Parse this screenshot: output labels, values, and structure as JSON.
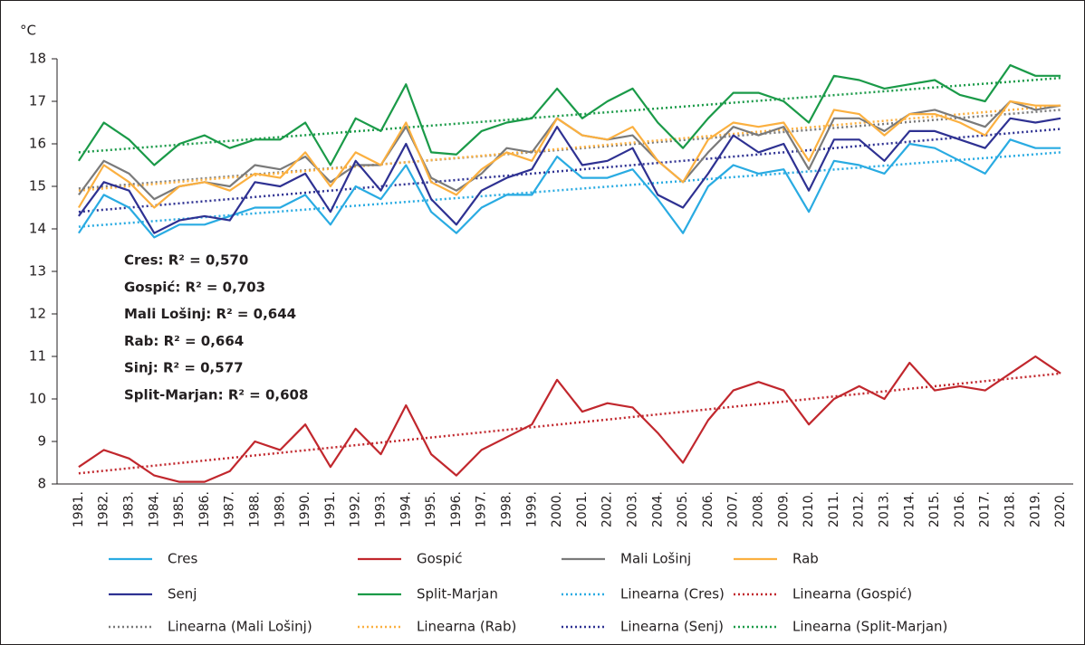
{
  "chart_data": {
    "type": "line",
    "y_unit": "°C",
    "categories": [
      "1981.",
      "1982.",
      "1983.",
      "1984.",
      "1985.",
      "1986.",
      "1987.",
      "1988.",
      "1989.",
      "1990.",
      "1991.",
      "1992.",
      "1993.",
      "1994.",
      "1995.",
      "1996.",
      "1997.",
      "1998.",
      "1999.",
      "2000.",
      "2001.",
      "2002.",
      "2003.",
      "2004.",
      "2005.",
      "2006.",
      "2007.",
      "2008.",
      "2009.",
      "2010.",
      "2011.",
      "2012.",
      "2013.",
      "2014.",
      "2015.",
      "2016.",
      "2017.",
      "2018.",
      "2019.",
      "2020."
    ],
    "ylim": [
      8,
      18
    ],
    "yticks": [
      8,
      9,
      10,
      11,
      12,
      13,
      14,
      15,
      16,
      17,
      18
    ],
    "series": [
      {
        "name": "Cres",
        "color": "#29abe2",
        "values": [
          13.9,
          14.8,
          14.5,
          13.8,
          14.1,
          14.1,
          14.3,
          14.5,
          14.5,
          14.8,
          14.1,
          15.0,
          14.7,
          15.5,
          14.4,
          13.9,
          14.5,
          14.8,
          14.8,
          15.7,
          15.2,
          15.2,
          15.4,
          14.7,
          13.9,
          15.0,
          15.5,
          15.3,
          15.4,
          14.4,
          15.6,
          15.5,
          15.3,
          16.0,
          15.9,
          15.6,
          15.3,
          16.1,
          15.9,
          15.9
        ]
      },
      {
        "name": "Gospić",
        "color": "#c1272d",
        "values": [
          8.4,
          8.8,
          8.6,
          8.2,
          8.05,
          8.05,
          8.3,
          9.0,
          8.8,
          9.4,
          8.4,
          9.3,
          8.7,
          9.85,
          8.7,
          8.2,
          8.8,
          9.1,
          9.4,
          10.45,
          9.7,
          9.9,
          9.8,
          9.2,
          8.5,
          9.5,
          10.2,
          10.4,
          10.2,
          9.4,
          10.0,
          10.3,
          10.0,
          10.85,
          10.2,
          10.3,
          10.2,
          10.6,
          11.0,
          10.6
        ]
      },
      {
        "name": "Mali Lošinj",
        "color": "#7a7a7a",
        "values": [
          14.8,
          15.6,
          15.3,
          14.7,
          15.0,
          15.1,
          15.0,
          15.5,
          15.4,
          15.7,
          15.1,
          15.5,
          15.5,
          16.4,
          15.2,
          14.9,
          15.3,
          15.9,
          15.8,
          16.6,
          16.2,
          16.1,
          16.2,
          15.6,
          15.1,
          15.8,
          16.4,
          16.2,
          16.4,
          15.4,
          16.6,
          16.6,
          16.3,
          16.7,
          16.8,
          16.6,
          16.4,
          17.0,
          16.8,
          16.9
        ]
      },
      {
        "name": "Rab",
        "color": "#fbb040",
        "values": [
          14.5,
          15.5,
          15.1,
          14.5,
          15.0,
          15.1,
          14.9,
          15.3,
          15.2,
          15.8,
          15.0,
          15.8,
          15.5,
          16.5,
          15.1,
          14.8,
          15.4,
          15.8,
          15.6,
          16.6,
          16.2,
          16.1,
          16.4,
          15.6,
          15.1,
          16.1,
          16.5,
          16.4,
          16.5,
          15.6,
          16.8,
          16.7,
          16.2,
          16.7,
          16.7,
          16.5,
          16.2,
          17.0,
          16.9,
          16.9
        ]
      },
      {
        "name": "Senj",
        "color": "#2e3192",
        "values": [
          14.3,
          15.1,
          14.9,
          13.9,
          14.2,
          14.3,
          14.2,
          15.1,
          15.0,
          15.3,
          14.4,
          15.6,
          14.9,
          16.0,
          14.7,
          14.1,
          14.9,
          15.2,
          15.4,
          16.4,
          15.5,
          15.6,
          15.9,
          14.8,
          14.5,
          15.3,
          16.2,
          15.8,
          16.0,
          14.9,
          16.1,
          16.1,
          15.6,
          16.3,
          16.3,
          16.1,
          15.9,
          16.6,
          16.5,
          16.6
        ]
      },
      {
        "name": "Split-Marjan",
        "color": "#1a9a48",
        "values": [
          15.6,
          16.5,
          16.1,
          15.5,
          16.0,
          16.2,
          15.9,
          16.1,
          16.1,
          16.5,
          15.5,
          16.6,
          16.3,
          17.4,
          15.8,
          15.75,
          16.3,
          16.5,
          16.6,
          17.3,
          16.6,
          17.0,
          17.3,
          16.5,
          15.9,
          16.6,
          17.2,
          17.2,
          17.0,
          16.5,
          17.6,
          17.5,
          17.3,
          17.4,
          17.5,
          17.15,
          17.0,
          17.85,
          17.6,
          17.6
        ]
      }
    ],
    "trendlines": [
      {
        "name": "Linearna (Cres)",
        "color": "#29abe2",
        "values": [
          14.05,
          15.8
        ]
      },
      {
        "name": "Linearna (Gospić)",
        "color": "#c1272d",
        "values": [
          8.25,
          10.6
        ]
      },
      {
        "name": "Linearna (Mali Lošinj)",
        "color": "#7a7a7a",
        "values": [
          14.95,
          16.8
        ]
      },
      {
        "name": "Linearna (Rab)",
        "color": "#fbb040",
        "values": [
          14.9,
          16.9
        ]
      },
      {
        "name": "Linearna (Senj)",
        "color": "#2e3192",
        "values": [
          14.4,
          16.35
        ]
      },
      {
        "name": "Linearna (Split-Marjan)",
        "color": "#1a9a48",
        "values": [
          15.8,
          17.55
        ]
      }
    ],
    "annotations": [
      "Cres: R² = 0,570",
      "Gospić: R² = 0,703",
      "Mali Lošinj: R² = 0,644",
      "Rab: R² = 0,664",
      "Sinj: R² = 0,577",
      "Split-Marjan: R² = 0,608"
    ]
  }
}
